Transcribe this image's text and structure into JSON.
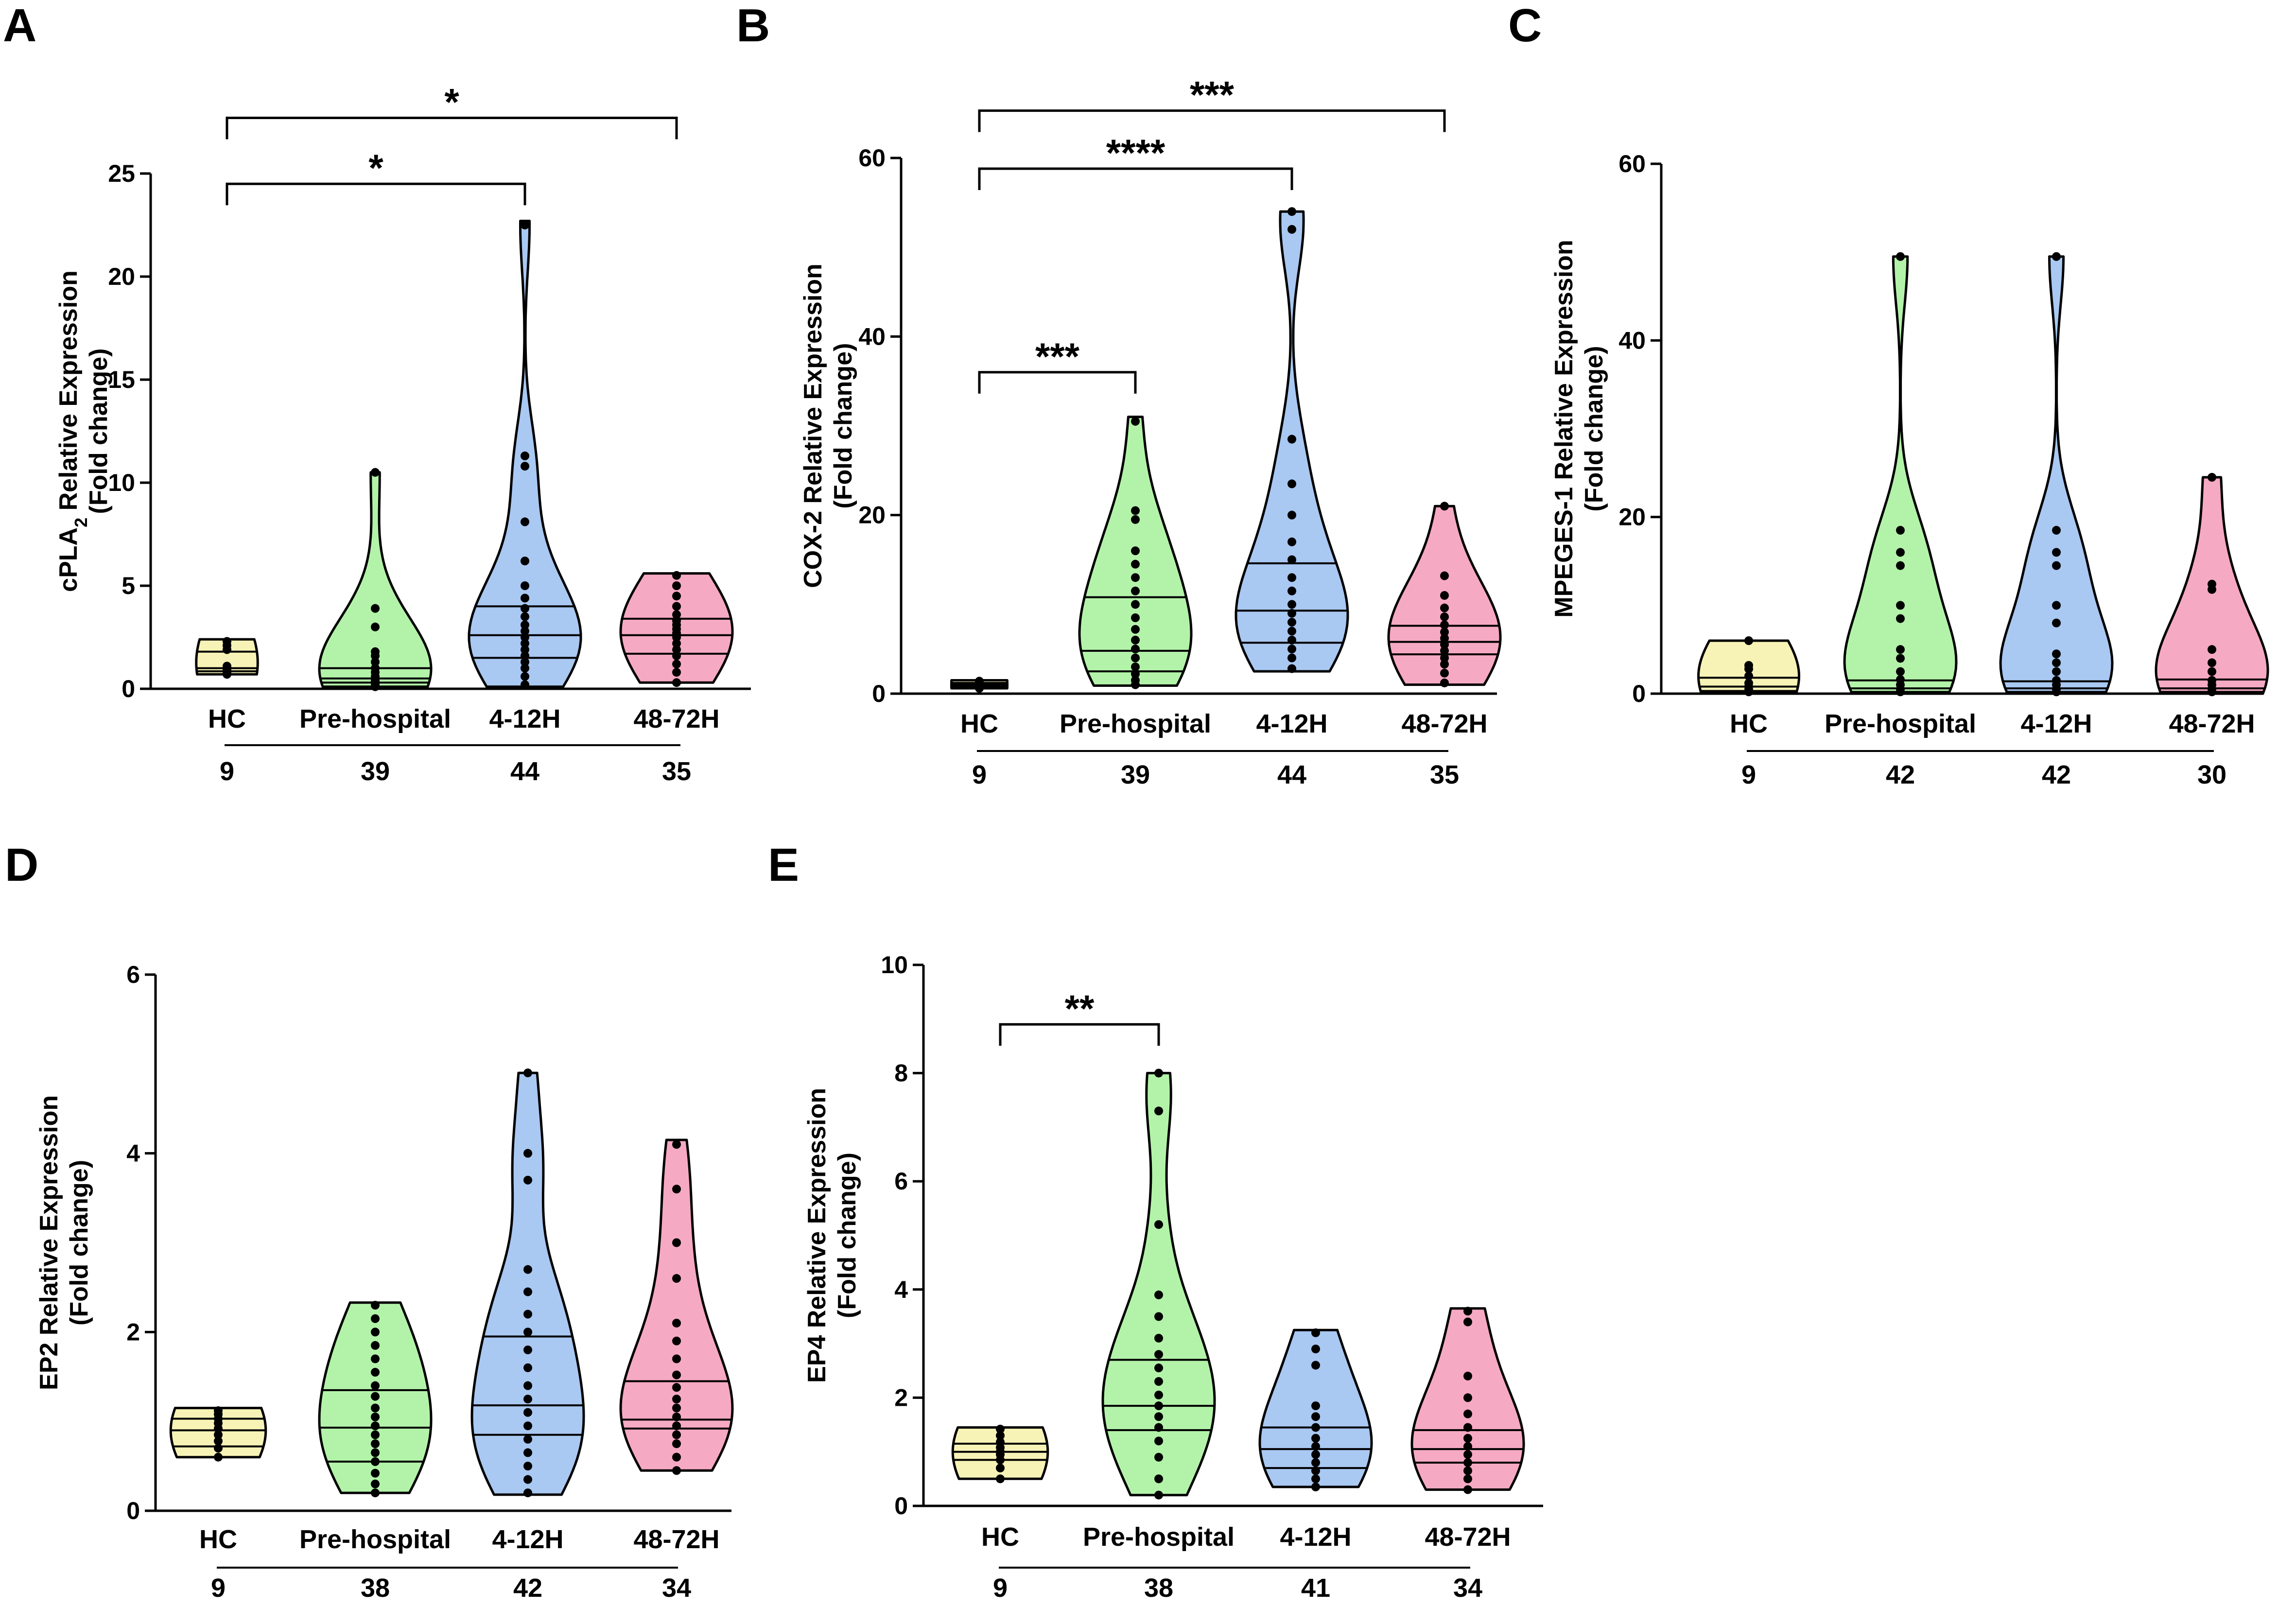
{
  "chart_data": [
    {
      "panel": "A",
      "type": "violin",
      "ylabel_main": "cPLA",
      "ylabel_sub": "2",
      "ylabel_rest": " Relative Expression",
      "ylabel2": "(Fold change)",
      "ylim": [
        0,
        25
      ],
      "yticks": [
        0,
        5,
        10,
        15,
        20,
        25
      ],
      "categories": [
        "HC",
        "Pre-hospital",
        "4-12H",
        "48-72H"
      ],
      "n": [
        "9",
        "39",
        "44",
        "35"
      ],
      "colors": [
        "#f7f3b6",
        "#b3f3a9",
        "#a9c8f2",
        "#f6a9c3"
      ],
      "series": [
        {
          "name": "HC",
          "min": 0.7,
          "q1": 0.85,
          "median": 1.0,
          "q3": 1.8,
          "max": 2.4,
          "points": [
            0.7,
            0.75,
            0.8,
            0.9,
            1.0,
            1.1,
            1.9,
            2.1,
            2.3
          ]
        },
        {
          "name": "Pre-hospital",
          "min": 0.1,
          "q1": 0.3,
          "median": 0.5,
          "q3": 1.0,
          "max": 10.5,
          "points": [
            0.1,
            0.2,
            0.3,
            0.3,
            0.4,
            0.5,
            0.6,
            0.8,
            1.0,
            1.3,
            1.6,
            1.8,
            3.0,
            3.9,
            10.5
          ]
        },
        {
          "name": "4-12H",
          "min": 0.1,
          "q1": 1.5,
          "median": 2.6,
          "q3": 4.0,
          "max": 22.7,
          "points": [
            0.2,
            0.6,
            1.0,
            1.3,
            1.6,
            1.9,
            2.2,
            2.5,
            2.8,
            3.1,
            3.5,
            3.9,
            4.4,
            5.0,
            6.2,
            8.1,
            10.8,
            11.3,
            22.5
          ]
        },
        {
          "name": "48-72H",
          "min": 0.3,
          "q1": 1.7,
          "median": 2.6,
          "q3": 3.4,
          "max": 5.6,
          "points": [
            0.3,
            0.8,
            1.2,
            1.6,
            1.9,
            2.2,
            2.5,
            2.7,
            2.9,
            3.1,
            3.3,
            3.6,
            4.0,
            4.5,
            5.0,
            5.5
          ]
        }
      ],
      "comparisons": [
        {
          "a": 0,
          "b": 2,
          "label": "*",
          "y": 24.5
        },
        {
          "a": 0,
          "b": 3,
          "label": "*",
          "y": 27.7
        }
      ]
    },
    {
      "panel": "B",
      "type": "violin",
      "ylabel_main": "COX-2 Relative Expression",
      "ylabel2": "(Fold change)",
      "ylim": [
        0,
        60
      ],
      "yticks": [
        0,
        20,
        40,
        60
      ],
      "categories": [
        "HC",
        "Pre-hospital",
        "4-12H",
        "48-72H"
      ],
      "n": [
        "9",
        "39",
        "44",
        "35"
      ],
      "colors": [
        "#f7f3b6",
        "#b3f3a9",
        "#a9c8f2",
        "#f6a9c3"
      ],
      "series": [
        {
          "name": "HC",
          "min": 0.6,
          "q1": 0.8,
          "median": 1.0,
          "q3": 1.2,
          "max": 1.5,
          "points": [
            0.6,
            0.8,
            0.9,
            1.0,
            1.0,
            1.1,
            1.2,
            1.4
          ]
        },
        {
          "name": "Pre-hospital",
          "min": 0.9,
          "q1": 2.5,
          "median": 4.8,
          "q3": 10.8,
          "max": 31.0,
          "points": [
            1.0,
            1.5,
            2.2,
            3.0,
            4.0,
            5.0,
            6.0,
            7.2,
            8.5,
            10.0,
            11.5,
            13.0,
            14.5,
            16.0,
            19.5,
            20.5,
            30.5
          ]
        },
        {
          "name": "4-12H",
          "min": 2.5,
          "q1": 5.7,
          "median": 9.3,
          "q3": 14.6,
          "max": 54.0,
          "points": [
            2.8,
            4.0,
            5.0,
            6.0,
            7.0,
            8.0,
            9.0,
            10.0,
            11.5,
            13.0,
            15.0,
            17.0,
            20.0,
            23.5,
            28.5,
            52.0,
            54.0
          ]
        },
        {
          "name": "48-72H",
          "min": 1.0,
          "q1": 4.4,
          "median": 5.8,
          "q3": 7.6,
          "max": 21.0,
          "points": [
            1.2,
            2.3,
            3.3,
            4.0,
            4.8,
            5.5,
            6.2,
            6.9,
            7.7,
            8.6,
            9.6,
            11.0,
            13.2,
            21.0
          ]
        }
      ],
      "comparisons": [
        {
          "a": 0,
          "b": 1,
          "label": "***",
          "y": 36.0
        },
        {
          "a": 0,
          "b": 2,
          "label": "****",
          "y": 58.8
        },
        {
          "a": 0,
          "b": 3,
          "label": "***",
          "y": 65.3
        }
      ]
    },
    {
      "panel": "C",
      "type": "violin",
      "ylabel_main": "MPEGES-1 Relative Expression",
      "ylabel2": "(Fold change)",
      "ylim": [
        0,
        60
      ],
      "yticks": [
        0,
        20,
        40,
        60
      ],
      "categories": [
        "HC",
        "Pre-hospital",
        "4-12H",
        "48-72H"
      ],
      "n": [
        "9",
        "42",
        "42",
        "30"
      ],
      "colors": [
        "#f7f3b6",
        "#b3f3a9",
        "#a9c8f2",
        "#f6a9c3"
      ],
      "series": [
        {
          "name": "HC",
          "min": 0.1,
          "q1": 0.3,
          "median": 0.8,
          "q3": 1.8,
          "max": 6.0,
          "points": [
            0.2,
            0.5,
            0.8,
            1.2,
            2.0,
            2.8,
            3.2,
            6.0
          ]
        },
        {
          "name": "Pre-hospital",
          "min": 0.0,
          "q1": 0.2,
          "median": 0.6,
          "q3": 1.5,
          "max": 49.5,
          "points": [
            0.2,
            0.5,
            1.0,
            1.6,
            2.5,
            4.0,
            5.0,
            8.5,
            10.0,
            14.5,
            16.0,
            18.5,
            49.5
          ]
        },
        {
          "name": "4-12H",
          "min": 0.0,
          "q1": 0.2,
          "median": 0.6,
          "q3": 1.4,
          "max": 49.5,
          "points": [
            0.2,
            0.5,
            1.0,
            1.5,
            2.5,
            3.5,
            4.5,
            8.0,
            10.0,
            14.5,
            16.0,
            18.5,
            49.5
          ]
        },
        {
          "name": "48-72H",
          "min": 0.0,
          "q1": 0.2,
          "median": 0.6,
          "q3": 1.6,
          "max": 24.5,
          "points": [
            0.2,
            0.5,
            1.0,
            1.5,
            2.5,
            3.5,
            5.0,
            11.8,
            12.4,
            24.5
          ]
        }
      ],
      "comparisons": []
    },
    {
      "panel": "D",
      "type": "violin",
      "ylabel_main": "EP2 Relative Expression",
      "ylabel2": "(Fold change)",
      "ylim": [
        0,
        6
      ],
      "yticks": [
        0,
        2,
        4,
        6
      ],
      "categories": [
        "HC",
        "Pre-hospital",
        "4-12H",
        "48-72H"
      ],
      "n": [
        "9",
        "38",
        "42",
        "34"
      ],
      "colors": [
        "#f7f3b6",
        "#b3f3a9",
        "#a9c8f2",
        "#f6a9c3"
      ],
      "series": [
        {
          "name": "HC",
          "min": 0.6,
          "q1": 0.72,
          "median": 0.9,
          "q3": 1.03,
          "max": 1.15,
          "points": [
            0.6,
            0.7,
            0.78,
            0.85,
            0.92,
            0.98,
            1.03,
            1.08,
            1.12
          ]
        },
        {
          "name": "Pre-hospital",
          "min": 0.2,
          "q1": 0.55,
          "median": 0.93,
          "q3": 1.35,
          "max": 2.33,
          "points": [
            0.2,
            0.3,
            0.42,
            0.55,
            0.65,
            0.75,
            0.85,
            0.95,
            1.05,
            1.15,
            1.28,
            1.4,
            1.55,
            1.7,
            1.85,
            2.0,
            2.15,
            2.3
          ]
        },
        {
          "name": "4-12H",
          "min": 0.18,
          "q1": 0.85,
          "median": 1.18,
          "q3": 1.95,
          "max": 4.9,
          "points": [
            0.2,
            0.35,
            0.5,
            0.65,
            0.8,
            0.95,
            1.1,
            1.25,
            1.4,
            1.6,
            1.8,
            2.0,
            2.2,
            2.45,
            2.7,
            3.7,
            4.0,
            4.9
          ]
        },
        {
          "name": "48-72H",
          "min": 0.45,
          "q1": 0.92,
          "median": 1.02,
          "q3": 1.45,
          "max": 4.15,
          "points": [
            0.45,
            0.6,
            0.75,
            0.85,
            0.95,
            1.05,
            1.15,
            1.25,
            1.38,
            1.52,
            1.7,
            1.9,
            2.1,
            2.6,
            3.0,
            3.6,
            4.1
          ]
        }
      ],
      "comparisons": []
    },
    {
      "panel": "E",
      "type": "violin",
      "ylabel_main": "EP4 Relative Expression",
      "ylabel2": "(Fold change)",
      "ylim": [
        0,
        10
      ],
      "yticks": [
        0,
        2,
        4,
        6,
        8,
        10
      ],
      "categories": [
        "HC",
        "Pre-hospital",
        "4-12H",
        "48-72H"
      ],
      "n": [
        "9",
        "38",
        "41",
        "34"
      ],
      "colors": [
        "#f7f3b6",
        "#b3f3a9",
        "#a9c8f2",
        "#f6a9c3"
      ],
      "series": [
        {
          "name": "HC",
          "min": 0.5,
          "q1": 0.85,
          "median": 1.0,
          "q3": 1.15,
          "max": 1.45,
          "points": [
            0.5,
            0.7,
            0.85,
            0.95,
            1.0,
            1.08,
            1.18,
            1.3,
            1.42
          ]
        },
        {
          "name": "Pre-hospital",
          "min": 0.2,
          "q1": 1.4,
          "median": 1.85,
          "q3": 2.7,
          "max": 8.0,
          "points": [
            0.2,
            0.5,
            0.9,
            1.2,
            1.45,
            1.65,
            1.85,
            2.05,
            2.3,
            2.55,
            2.8,
            3.1,
            3.5,
            3.9,
            5.2,
            7.3,
            8.0
          ]
        },
        {
          "name": "4-12H",
          "min": 0.35,
          "q1": 0.7,
          "median": 1.05,
          "q3": 1.45,
          "max": 3.25,
          "points": [
            0.35,
            0.5,
            0.65,
            0.8,
            0.95,
            1.1,
            1.25,
            1.45,
            1.65,
            1.85,
            2.6,
            2.9,
            3.2
          ]
        },
        {
          "name": "48-72H",
          "min": 0.3,
          "q1": 0.8,
          "median": 1.05,
          "q3": 1.4,
          "max": 3.65,
          "points": [
            0.3,
            0.5,
            0.65,
            0.8,
            0.95,
            1.1,
            1.25,
            1.45,
            1.7,
            2.0,
            2.4,
            3.4,
            3.6
          ]
        }
      ],
      "comparisons": [
        {
          "a": 0,
          "b": 1,
          "label": "**",
          "y": 8.9
        }
      ]
    }
  ]
}
